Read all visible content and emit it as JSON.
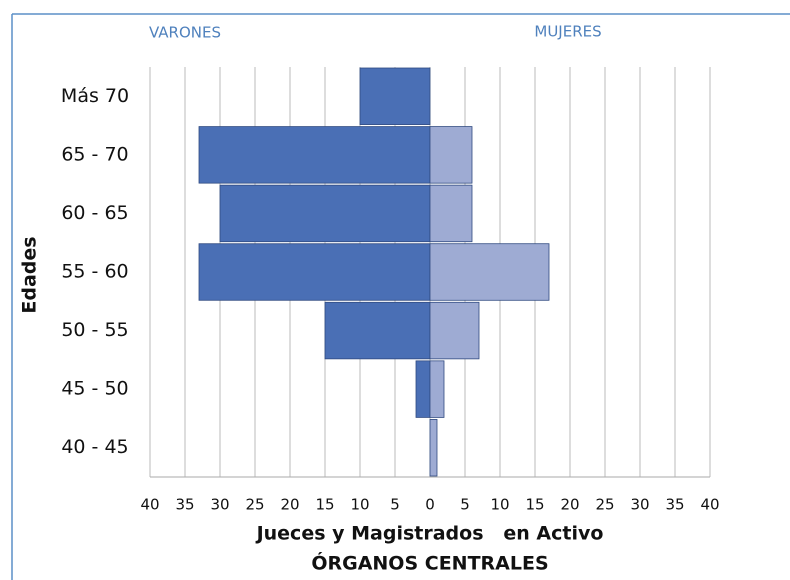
{
  "chart_data": {
    "type": "pyramid",
    "title": "ÓRGANOS CENTRALES",
    "x_label": "Jueces y Magistrados   en Activo",
    "y_label": "Edades",
    "categories": [
      "40 - 45",
      "45 - 50",
      "50 - 55",
      "55 - 60",
      "60 - 65",
      "65 - 70",
      "Más  70"
    ],
    "series": [
      {
        "name": "VARONES",
        "color": "#4a6fb5",
        "values": [
          0,
          -2,
          -15,
          -33,
          -30,
          -33,
          -10
        ]
      },
      {
        "name": "MUJERES",
        "color": "#9eabd3",
        "values": [
          1,
          2,
          7,
          17,
          6,
          6,
          0
        ]
      }
    ],
    "xlim": [
      -40,
      40
    ],
    "xticks": [
      {
        "value": -40,
        "label": "40"
      },
      {
        "value": -35,
        "label": "35"
      },
      {
        "value": -30,
        "label": "30"
      },
      {
        "value": -25,
        "label": "25"
      },
      {
        "value": -20,
        "label": "20"
      },
      {
        "value": -15,
        "label": "15"
      },
      {
        "value": -10,
        "label": "10"
      },
      {
        "value": -5,
        "label": "5"
      },
      0,
      5,
      10,
      15,
      20,
      25,
      30,
      35,
      40
    ],
    "grid": true
  }
}
